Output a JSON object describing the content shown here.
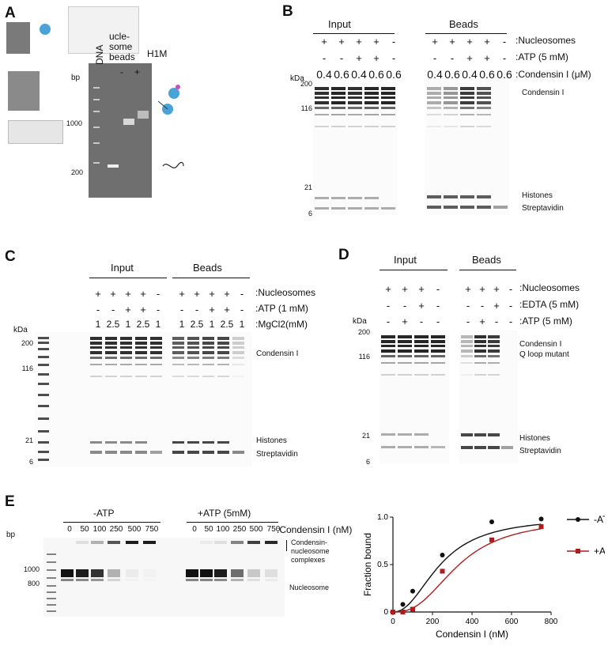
{
  "panel_labels": {
    "A": "A",
    "B": "B",
    "C": "C",
    "D": "D",
    "E": "E"
  },
  "panel_A_inset": {
    "overlay_labels": [
      "ucle-",
      "some",
      "beads"
    ],
    "lane_labels": [
      "DNA",
      "-",
      "+"
    ],
    "h1m_label": "H1M",
    "bp_label": "bp",
    "ticks": [
      "1000",
      "200"
    ]
  },
  "panel_B": {
    "group_labels": [
      "Input",
      "Beads"
    ],
    "row_labels": [
      ":Nucleosomes",
      ":ATP (5 mM)",
      ":Condensin I (μM)"
    ],
    "input_rows": {
      "nucleosomes": [
        "+",
        "+",
        "+",
        "+",
        "-"
      ],
      "atp": [
        "-",
        "-",
        "+",
        "+",
        "-"
      ],
      "condensin": [
        "0.4",
        "0.6",
        "0.4",
        "0.6",
        "0.6"
      ]
    },
    "beads_rows": {
      "nucleosomes": [
        "+",
        "+",
        "+",
        "+",
        "-"
      ],
      "atp": [
        "-",
        "-",
        "+",
        "+",
        "-"
      ],
      "condensin": [
        "0.4",
        "0.6",
        "0.4",
        "0.6",
        "0.6"
      ]
    },
    "kda_label": "kDa",
    "ticks": [
      "200",
      "116",
      "21",
      "6"
    ],
    "band_labels": [
      "Condensin I",
      "Histones",
      "Streptavidin"
    ]
  },
  "panel_C": {
    "group_labels": [
      "Input",
      "Beads"
    ],
    "row_labels": [
      ":Nucleosomes",
      ":ATP (1 mM)",
      ":MgCl2(mM)"
    ],
    "input_rows": {
      "nucleosomes": [
        "+",
        "+",
        "+",
        "+",
        "-"
      ],
      "atp": [
        "-",
        "-",
        "+",
        "+",
        "-"
      ],
      "mgcl2": [
        "1",
        "2.5",
        "1",
        "2.5",
        "1"
      ]
    },
    "beads_rows": {
      "nucleosomes": [
        "+",
        "+",
        "+",
        "+",
        "-"
      ],
      "atp": [
        "-",
        "-",
        "+",
        "+",
        "-"
      ],
      "mgcl2": [
        "1",
        "2.5",
        "1",
        "2.5",
        "1"
      ]
    },
    "kda_label": "kDa",
    "ticks": [
      "200",
      "116",
      "21",
      "6"
    ],
    "band_labels": [
      "Condensin I",
      "Histones",
      "Streptavidin"
    ]
  },
  "panel_D": {
    "group_labels": [
      "Input",
      "Beads"
    ],
    "row_labels": [
      ":Nucleosomes",
      ":EDTA (5 mM)",
      ":ATP (5 mM)"
    ],
    "input_rows": {
      "nucleosomes": [
        "+",
        "+",
        "+",
        "-"
      ],
      "edta": [
        "-",
        "-",
        "+",
        "-"
      ],
      "atp": [
        "-",
        "+",
        "-",
        "-"
      ]
    },
    "beads_rows": {
      "nucleosomes": [
        "+",
        "+",
        "+",
        "-"
      ],
      "edta": [
        "-",
        "-",
        "+",
        "-"
      ],
      "atp": [
        "-",
        "+",
        "-",
        "-"
      ]
    },
    "kda_label": "kDa",
    "ticks": [
      "200",
      "116",
      "21",
      "6"
    ],
    "band_labels": [
      "Condensin I",
      "Q loop mutant",
      "Histones",
      "Streptavidin"
    ]
  },
  "panel_E": {
    "group_labels": [
      "-ATP",
      "+ATP (5mM)"
    ],
    "row_label": ":Condensin I (nM)",
    "concentrations": [
      "0",
      "50",
      "100",
      "250",
      "500",
      "750"
    ],
    "bp_label": "bp",
    "ticks": [
      "1000",
      "800"
    ],
    "band_labels": [
      "Condensin-",
      "nucleosome",
      "complexes",
      "Nucleosome"
    ]
  },
  "chart_data": {
    "type": "scatter",
    "xlabel": "Condensin I (nM)",
    "ylabel": "Fraction bound",
    "xlim": [
      0,
      800
    ],
    "ylim": [
      0,
      1.0
    ],
    "x_ticks": [
      "0",
      "200",
      "400",
      "600",
      "800"
    ],
    "y_ticks": [
      "0",
      "0.5",
      "1.0"
    ],
    "legend_position": "right",
    "series": [
      {
        "name": "-ATP",
        "color": "#111111",
        "marker": "circle",
        "x": [
          0,
          50,
          100,
          250,
          500,
          750
        ],
        "y": [
          0,
          0.08,
          0.22,
          0.6,
          0.95,
          0.98
        ]
      },
      {
        "name": "+ATP",
        "color": "#b01c1c",
        "marker": "square",
        "x": [
          0,
          50,
          100,
          250,
          500,
          750
        ],
        "y": [
          0,
          0.0,
          0.03,
          0.43,
          0.76,
          0.9
        ]
      }
    ]
  }
}
